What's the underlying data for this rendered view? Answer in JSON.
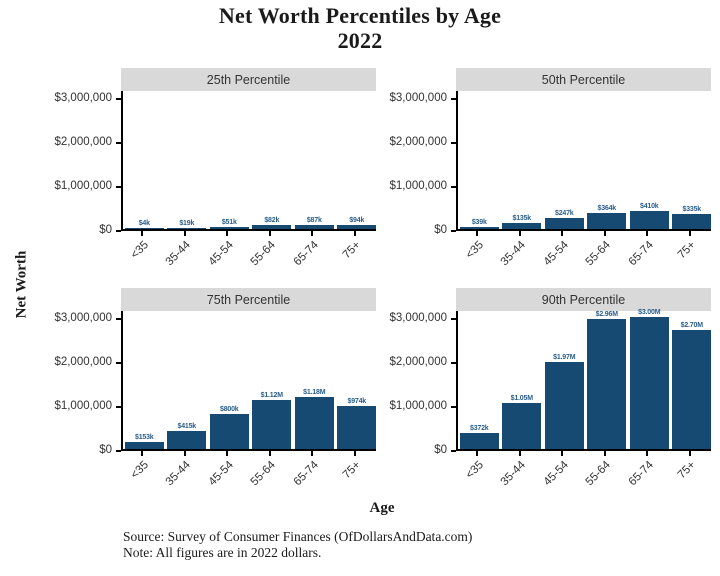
{
  "title": {
    "line1": "Net Worth Percentiles by Age",
    "line2": "2022"
  },
  "axis_titles": {
    "y": "Net Worth",
    "x": "Age"
  },
  "caption": {
    "source": "Source:  Survey of Consumer Finances (OfDollarsAndData.com)",
    "note": "Note: All figures are in 2022 dollars."
  },
  "colors": {
    "bar_fill": "#164a72",
    "bar_label": "#2a5e8c",
    "strip_bg": "#d9d9d9",
    "strip_text": "#333333",
    "axis_line": "#000000",
    "tick_text": "#333333"
  },
  "chart_data": {
    "type": "bar",
    "title": "Net Worth Percentiles by Age 2022",
    "xlabel": "Age",
    "ylabel": "Net Worth",
    "facet_layout": "2x2",
    "grid": false,
    "legend_position": "none",
    "categories": [
      "<35",
      "35-44",
      "45-54",
      "55-64",
      "65-74",
      "75+"
    ],
    "ylim": [
      0,
      3180000
    ],
    "y_tick_values": [
      0,
      1000000,
      2000000,
      3000000
    ],
    "y_tick_labels": [
      "$0",
      "$1,000,000",
      "$2,000,000",
      "$3,000,000"
    ],
    "series": [
      {
        "name": "25th Percentile",
        "values": [
          4000,
          19000,
          51000,
          82000,
          87000,
          94000
        ],
        "labels": [
          "$4k",
          "$19k",
          "$51k",
          "$82k",
          "$87k",
          "$94k"
        ]
      },
      {
        "name": "50th Percentile",
        "values": [
          39000,
          135000,
          247000,
          364000,
          410000,
          335000
        ],
        "labels": [
          "$39k",
          "$135k",
          "$247k",
          "$364k",
          "$410k",
          "$335k"
        ]
      },
      {
        "name": "75th Percentile",
        "values": [
          153000,
          415000,
          800000,
          1120000,
          1180000,
          974000
        ],
        "labels": [
          "$153k",
          "$415k",
          "$800k",
          "$1.12M",
          "$1.18M",
          "$974k"
        ]
      },
      {
        "name": "90th Percentile",
        "values": [
          372000,
          1050000,
          1970000,
          2960000,
          3000000,
          2700000
        ],
        "labels": [
          "$372k",
          "$1.05M",
          "$1.97M",
          "$2.96M",
          "$3.00M",
          "$2.70M"
        ]
      }
    ]
  }
}
